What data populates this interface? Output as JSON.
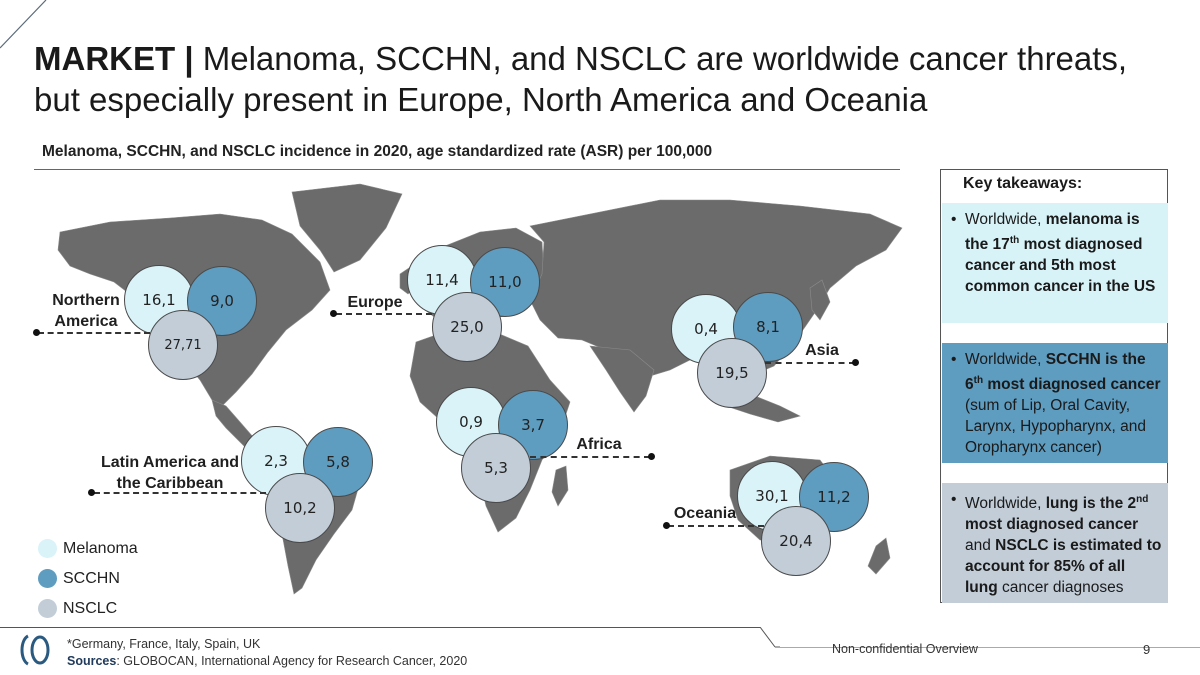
{
  "title": {
    "bold": "MARKET |",
    "text": "Melanoma, SCCHN, and NSCLC are worldwide cancer threats, but especially present in Europe, North America and Oceania"
  },
  "subtitle": "Melanoma, SCCHN, and NSCLC incidence in 2020, age standardized rate (ASR) per 100,000",
  "colors": {
    "melanoma": "#d9f3f8",
    "scchn": "#5e9cc0",
    "nsclc": "#c2cdd8",
    "map": "#6b6b6b"
  },
  "regions": [
    {
      "name_line1": "Northern",
      "name_line2": "America",
      "melanoma": "16,1",
      "scchn": "9,0",
      "nsclc": "27,71"
    },
    {
      "name_line1": "Europe",
      "name_line2": "",
      "melanoma": "11,4",
      "scchn": "11,0",
      "nsclc": "25,0"
    },
    {
      "name_line1": "Asia",
      "name_line2": "",
      "melanoma": "0,4",
      "scchn": "8,1",
      "nsclc": "19,5"
    },
    {
      "name_line1": "Africa",
      "name_line2": "",
      "melanoma": "0,9",
      "scchn": "3,7",
      "nsclc": "5,3"
    },
    {
      "name_line1": "Latin America and",
      "name_line2": "the Caribbean",
      "melanoma": "2,3",
      "scchn": "5,8",
      "nsclc": "10,2"
    },
    {
      "name_line1": "Oceania",
      "name_line2": "",
      "melanoma": "30,1",
      "scchn": "11,2",
      "nsclc": "20,4"
    }
  ],
  "legend": [
    "Melanoma",
    "SCCHN",
    "NSCLC"
  ],
  "key_takeaways": {
    "title": "Key takeaways:",
    "items": [
      {
        "a": "Worldwide, ",
        "b": "melanoma is the 17",
        "sup": "th",
        "c": " most diagnosed cancer and 5th most common cancer in the US",
        "d": ""
      },
      {
        "a": "Worldwide, ",
        "b": "SCCHN is the 6",
        "sup": "th",
        "c": " most diagnosed cancer",
        "d": " (sum of Lip, Oral Cavity, Larynx, Hypopharynx, and Oropharynx cancer)"
      },
      {
        "a": "Worldwide, ",
        "b": "lung is the 2",
        "sup": "nd",
        "c": " most diagnosed cancer",
        "d": " and ",
        "e": "NSCLC is estimated to account for 85% of all lung",
        "f": " cancer diagnoses"
      }
    ]
  },
  "footer": {
    "note": "*Germany, France, Italy, Spain, UK",
    "sources_label": "Sources",
    "sources_text": ": GLOBOCAN, International Agency for Research Cancer, 2020",
    "confidentiality": "Non-confidential Overview",
    "page": "9"
  }
}
